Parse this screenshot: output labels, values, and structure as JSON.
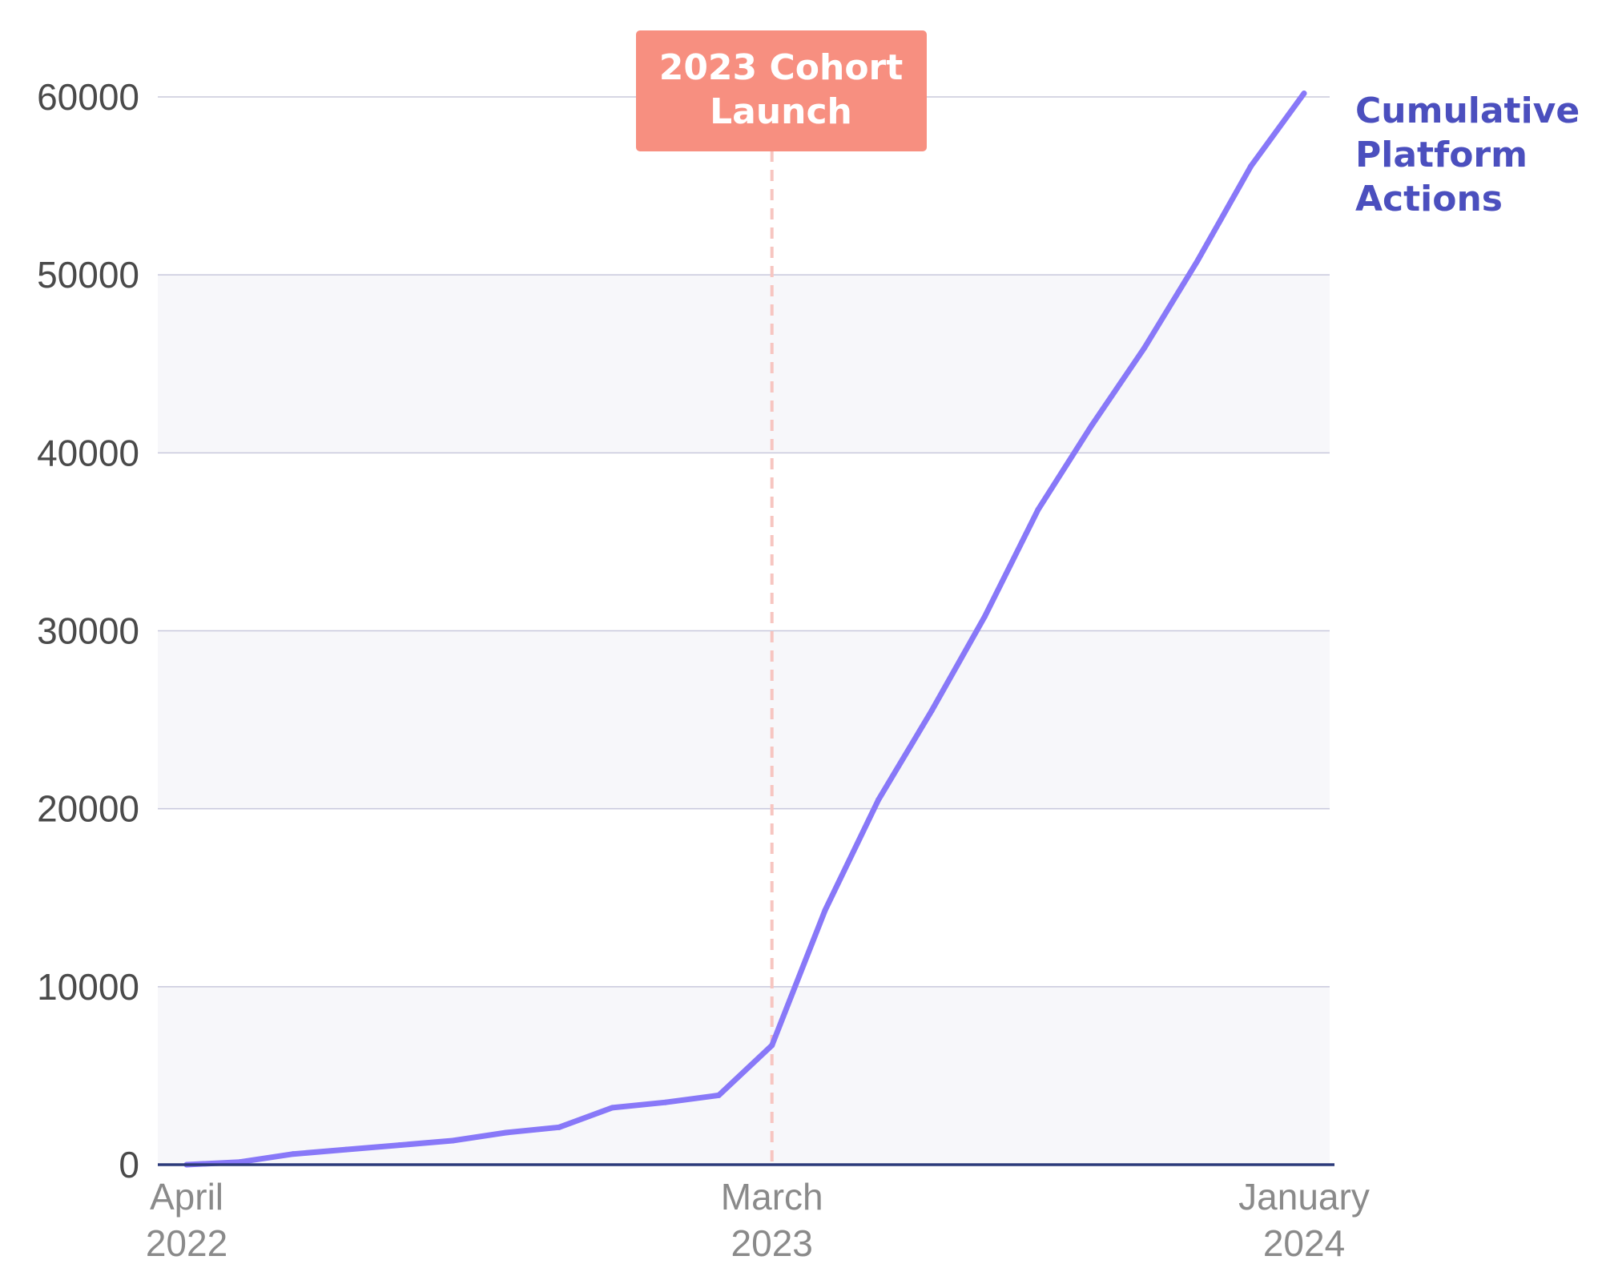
{
  "chart_data": {
    "type": "line",
    "title": "",
    "xlabel": "",
    "ylabel": "",
    "x": [
      "2022-04",
      "2022-05",
      "2022-06",
      "2022-07",
      "2022-08",
      "2022-09",
      "2022-10",
      "2022-11",
      "2022-12",
      "2023-01",
      "2023-02",
      "2023-03",
      "2023-04",
      "2023-05",
      "2023-06",
      "2023-07",
      "2023-08",
      "2023-09",
      "2023-10",
      "2023-11",
      "2023-12",
      "2024-01"
    ],
    "series": [
      {
        "name": "Cumulative Platform Actions",
        "label_lines": [
          "Cumulative",
          "Platform",
          "Actions"
        ],
        "color": "#8878f8",
        "values": [
          0,
          150,
          600,
          850,
          1100,
          1350,
          1800,
          2100,
          3200,
          3500,
          3900,
          6700,
          14300,
          20500,
          25500,
          30800,
          36800,
          41500,
          45900,
          50800,
          56100,
          60200
        ]
      }
    ],
    "ylim": [
      0,
      60000
    ],
    "yticks": [
      "0",
      "10000",
      "20000",
      "30000",
      "40000",
      "50000",
      "60000"
    ],
    "xticks": [
      {
        "x": "2022-04",
        "lines": [
          "April",
          "2022"
        ]
      },
      {
        "x": "2023-03",
        "lines": [
          "March",
          "2023"
        ]
      },
      {
        "x": "2024-01",
        "lines": [
          "January",
          "2024"
        ]
      }
    ],
    "annotation": {
      "x": "2023-03",
      "lines": [
        "2023 Cohort",
        "Launch"
      ],
      "box_color": "#f78f80",
      "line_color": "#f7c5c0"
    },
    "grid": true,
    "band_color": "#f7f7fa",
    "grid_color": "#c8c8dc",
    "axis_color": "#2c3a7a",
    "legend": "direct-label-right"
  }
}
